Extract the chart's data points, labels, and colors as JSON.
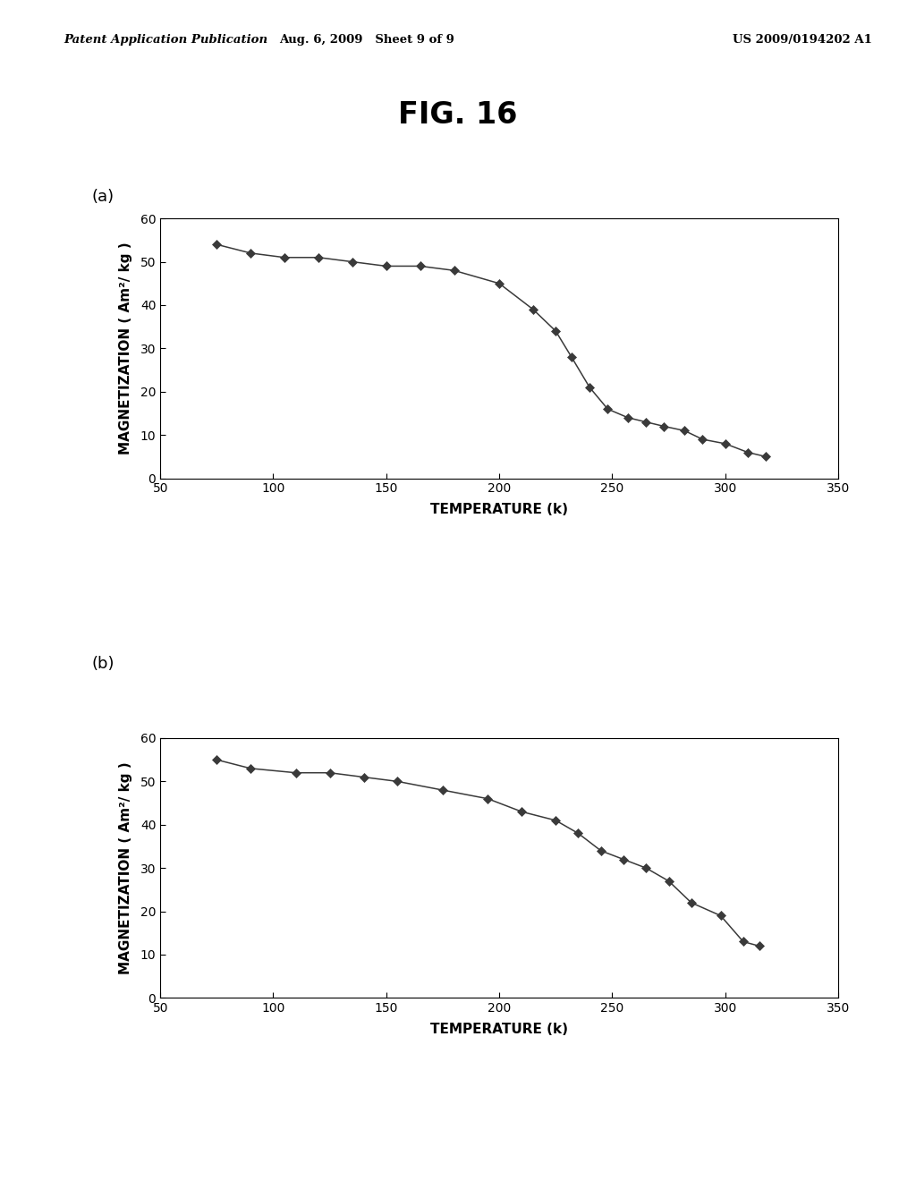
{
  "title": "FIG. 16",
  "header_left": "Patent Application Publication",
  "header_center": "Aug. 6, 2009   Sheet 9 of 9",
  "header_right": "US 2009/0194202 A1",
  "subplot_a_label": "(a)",
  "subplot_b_label": "(b)",
  "xlabel": "TEMPERATURE (k)",
  "ylabel": "MAGNETIZATION ( Am²/ kg )",
  "xlim": [
    50,
    350
  ],
  "ylim": [
    0,
    60
  ],
  "xticks": [
    50,
    100,
    150,
    200,
    250,
    300,
    350
  ],
  "yticks": [
    0,
    10,
    20,
    30,
    40,
    50,
    60
  ],
  "plot_a_T": [
    75,
    90,
    105,
    120,
    135,
    150,
    165,
    180,
    200,
    215,
    225,
    232,
    240,
    248,
    257,
    265,
    273,
    282,
    290,
    300,
    310,
    318
  ],
  "plot_a_M": [
    54,
    52,
    51,
    51,
    50,
    49,
    49,
    48,
    45,
    39,
    34,
    28,
    21,
    16,
    14,
    13,
    12,
    11,
    9,
    8,
    6,
    5
  ],
  "plot_b_T": [
    75,
    90,
    110,
    125,
    140,
    155,
    175,
    195,
    210,
    225,
    235,
    245,
    255,
    265,
    275,
    285,
    298,
    308,
    315
  ],
  "plot_b_M": [
    55,
    53,
    52,
    52,
    51,
    50,
    48,
    46,
    43,
    41,
    38,
    34,
    32,
    30,
    27,
    22,
    19,
    13,
    12
  ],
  "line_color": "#3a3a3a",
  "marker": "D",
  "marker_size": 5,
  "marker_color": "#3a3a3a",
  "background_color": "#ffffff",
  "header_fontsize": 9.5,
  "title_fontsize": 24,
  "label_fontsize": 11,
  "tick_fontsize": 10,
  "sublabel_fontsize": 13
}
